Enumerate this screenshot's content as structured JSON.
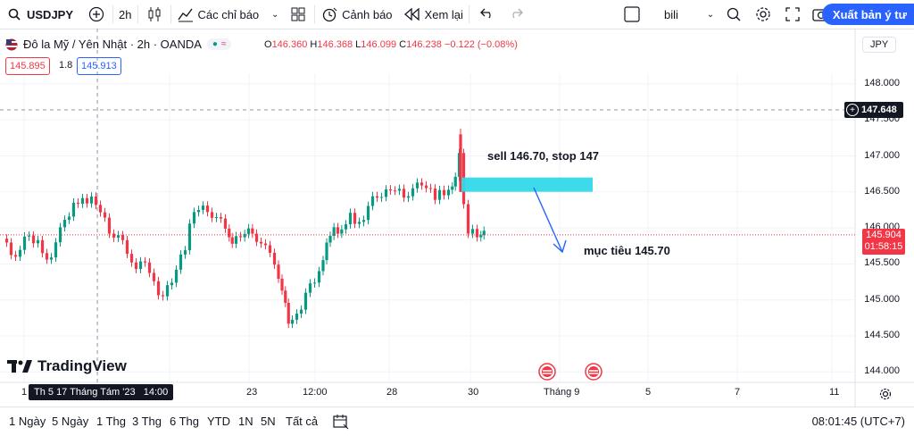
{
  "toolbar": {
    "symbol": "USDJPY",
    "interval": "2h",
    "indicators": "Các chỉ báo",
    "alerts": "Cảnh báo",
    "replay": "Xem lại",
    "layout_name": "bili",
    "publish": "Xuất bản ý tư"
  },
  "legend": {
    "title": "Đô la Mỹ / Yên Nhật · 2h · OANDA",
    "ohlc": {
      "o_key": "O",
      "o": "146.360",
      "h_key": "H",
      "h": "146.368",
      "l_key": "L",
      "l": "146.099",
      "c_key": "C",
      "c": "146.238",
      "change": "−0.122 (−0.08%)"
    },
    "sell_price": "145.895",
    "spread": "1.8",
    "buy_price": "145.913"
  },
  "price_axis": {
    "currency": "JPY",
    "ticks": [
      "148.000",
      "147.500",
      "147.000",
      "146.500",
      "146.000",
      "145.500",
      "145.000",
      "144.500",
      "144.000"
    ],
    "crosshair_price": "147.648",
    "last_price": "145.904",
    "countdown": "01:58:15"
  },
  "annotations": {
    "sell": "sell 146.70, stop 147",
    "target": "mục tiêu 145.70"
  },
  "time_axis": {
    "ticks": [
      "1",
      "23",
      "12:00",
      "28",
      "30",
      "Tháng 9",
      "5",
      "7",
      "11"
    ],
    "crosshair_date": "Th 5 17 Tháng Tám '23   14:00"
  },
  "logo": "TradingView",
  "ranges": [
    "1 Ngày",
    "5 Ngày",
    "1 Thg",
    "3 Thg",
    "6 Thg",
    "YTD",
    "1N",
    "5N",
    "Tất cả"
  ],
  "clock": "08:01:45 (UTC+7)",
  "colors": {
    "up": "#089981",
    "down": "#f23645",
    "accent": "#2962ff",
    "zone": "#33d9e8"
  }
}
